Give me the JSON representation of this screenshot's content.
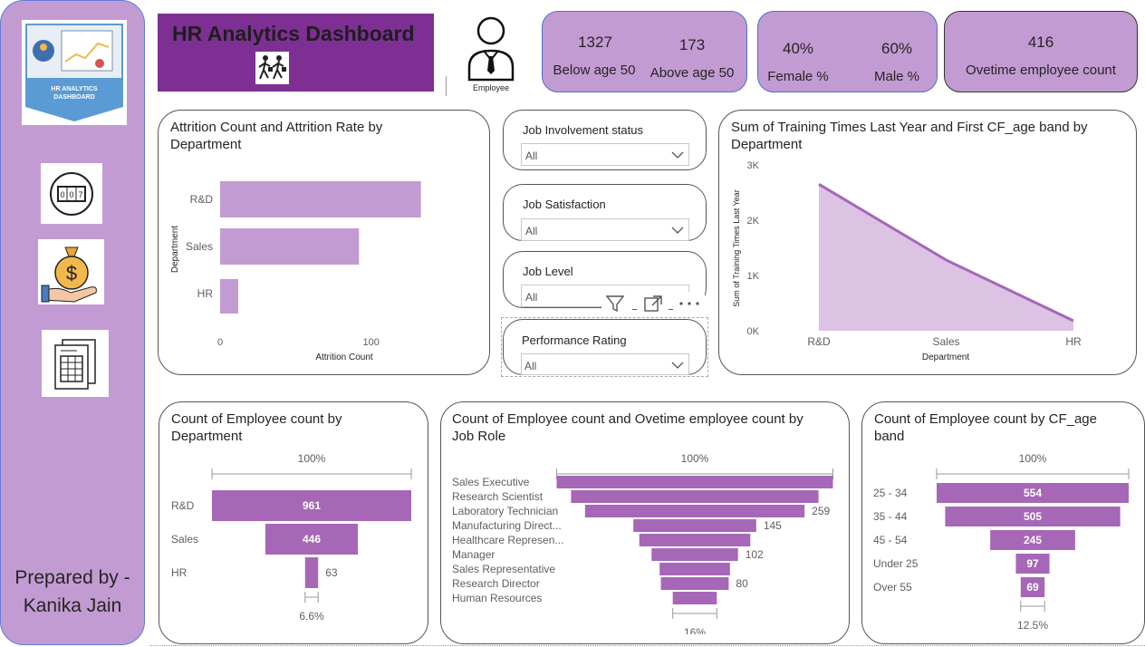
{
  "sidebar": {
    "logo_text_line1": "HR ANALYTICS",
    "logo_text_line2": "DASHBOARD",
    "icons": [
      "counter-icon",
      "money-bag-icon",
      "spreadsheet-icon"
    ],
    "prepared_line1": "Prepared by -",
    "prepared_line2": "Kanika Jain"
  },
  "header": {
    "title": "HR  Analytics Dashboard",
    "employee_label": "Employee"
  },
  "kpis": {
    "below50_value": "1327",
    "below50_label": "Below age 50",
    "above50_value": "173",
    "above50_label": "Above age 50",
    "female_value": "40%",
    "female_label": "Female %",
    "male_value": "60%",
    "male_label": "Male %",
    "overtime_value": "416",
    "overtime_label": "Ovetime employee count"
  },
  "attrition": {
    "title_line1": "Attrition Count and Attrition Rate by",
    "title_line2": "Department",
    "ylabel": "Department",
    "xlabel": "Attrition Count"
  },
  "slicers": [
    {
      "title": "Job Involvement status",
      "value": "All"
    },
    {
      "title": "Job Satisfaction",
      "value": "All"
    },
    {
      "title": "Job Level",
      "value": "All"
    },
    {
      "title": "Performance Rating",
      "value": "All"
    }
  ],
  "training": {
    "title_line1": "Sum of Training Times Last Year and First CF_age band by",
    "title_line2": "Department",
    "ylabel": "Sum of Training Times Last Year",
    "xlabel": "Department"
  },
  "dept_funnel": {
    "title_line1": "Count of Employee count by",
    "title_line2": "Department",
    "top_pct": "100%",
    "bottom_pct": "6.6%"
  },
  "role_funnel": {
    "title_line1": "Count of Employee count and Ovetime employee count by",
    "title_line2": "Job Role",
    "top_pct": "100%",
    "bottom_pct": "16%"
  },
  "age_funnel": {
    "title_line1": "Count of Employee count by CF_age",
    "title_line2": "band",
    "top_pct": "100%",
    "bottom_pct": "12.5%"
  },
  "colors": {
    "purple_light": "#c39bd3",
    "purple_dark": "#7e2f93",
    "bar": "#a667b7",
    "kpi_border": "#4b6fd2"
  },
  "chart_data": [
    {
      "type": "bar",
      "orientation": "horizontal",
      "categories": [
        "R&D",
        "Sales",
        "HR"
      ],
      "values": [
        133,
        92,
        12
      ],
      "xlim": [
        0,
        150
      ],
      "xticks": [
        "0",
        "100"
      ],
      "title": "Attrition Count and Attrition Rate by Department",
      "xlabel": "Attrition Count",
      "ylabel": "Department"
    },
    {
      "type": "area",
      "categories": [
        "R&D",
        "Sales",
        "HR"
      ],
      "values": [
        2650,
        1280,
        180
      ],
      "ylim": [
        0,
        3000
      ],
      "yticks": [
        "0K",
        "1K",
        "2K",
        "3K"
      ],
      "title": "Sum of Training Times Last Year and First CF_age band by Department",
      "xlabel": "Department",
      "ylabel": "Sum of Training Times Last Year"
    },
    {
      "type": "funnel",
      "title": "Count of Employee count by Department",
      "categories": [
        "R&D",
        "Sales",
        "HR"
      ],
      "values": [
        961,
        446,
        63
      ],
      "labels": [
        "961",
        "446",
        "63"
      ]
    },
    {
      "type": "funnel",
      "title": "Count of Employee count and Ovetime employee count by Job Role",
      "categories": [
        "Sales Executive",
        "Research Scientist",
        "Laboratory Technician",
        "Manufacturing Direct...",
        "Healthcare Represen...",
        "Manager",
        "Sales Representative",
        "Research Director",
        "Human Resources"
      ],
      "values": [
        326,
        292,
        259,
        145,
        131,
        102,
        83,
        80,
        52
      ],
      "labels": [
        "",
        "",
        "259",
        "145",
        "",
        "102",
        "",
        "80",
        ""
      ]
    },
    {
      "type": "funnel",
      "title": "Count of Employee count by CF_age band",
      "categories": [
        "25 - 34",
        "35 - 44",
        "45 - 54",
        "Under 25",
        "Over 55"
      ],
      "values": [
        554,
        505,
        245,
        97,
        69
      ],
      "labels": [
        "554",
        "505",
        "245",
        "97",
        "69"
      ]
    }
  ]
}
